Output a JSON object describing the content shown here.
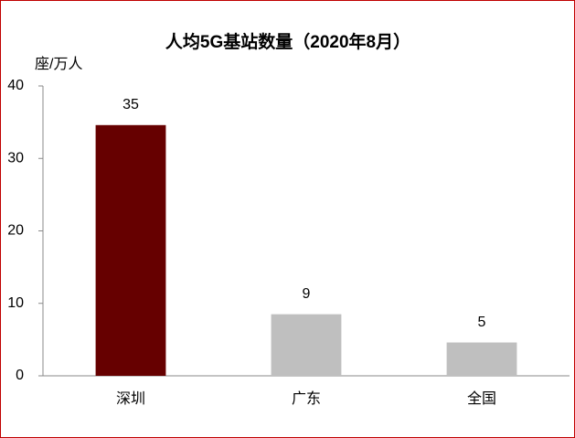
{
  "chart_data": {
    "type": "bar",
    "title": "人均5G基站数量（2020年8月）",
    "y_label": "座/万人",
    "categories": [
      "深圳",
      "广东",
      "全国"
    ],
    "values": [
      34.6,
      8.5,
      4.6
    ],
    "value_labels": [
      "35",
      "9",
      "5"
    ],
    "colors": [
      "#660000",
      "#bfbfbf",
      "#bfbfbf"
    ],
    "ylim": [
      0,
      40
    ],
    "yticks": [
      0,
      10,
      20,
      30,
      40
    ]
  }
}
